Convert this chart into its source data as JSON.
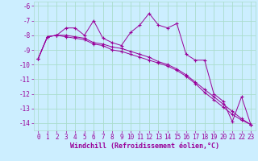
{
  "xlabel": "Windchill (Refroidissement éolien,°C)",
  "line1_x": [
    0,
    1,
    2,
    3,
    4,
    5,
    6,
    7,
    8,
    9,
    10,
    11,
    12,
    13,
    14,
    15,
    16,
    17,
    18,
    19,
    20,
    21,
    22,
    23
  ],
  "line1_y": [
    -9.6,
    -8.1,
    -8.0,
    -7.5,
    -7.5,
    -8.0,
    -7.0,
    -8.2,
    -8.5,
    -8.7,
    -7.8,
    -7.3,
    -6.5,
    -7.3,
    -7.5,
    -7.2,
    -9.3,
    -9.7,
    -9.7,
    -12.0,
    -12.5,
    -13.9,
    -12.2,
    -14.1
  ],
  "line2_x": [
    0,
    1,
    2,
    3,
    4,
    5,
    6,
    7,
    8,
    9,
    10,
    11,
    12,
    13,
    14,
    15,
    16,
    17,
    18,
    19,
    20,
    21,
    22,
    23
  ],
  "line2_y": [
    -9.6,
    -8.1,
    -8.0,
    -8.0,
    -8.1,
    -8.2,
    -8.5,
    -8.6,
    -8.8,
    -8.9,
    -9.1,
    -9.3,
    -9.5,
    -9.8,
    -10.0,
    -10.3,
    -10.7,
    -11.2,
    -11.7,
    -12.2,
    -12.7,
    -13.2,
    -13.7,
    -14.1
  ],
  "line3_x": [
    0,
    1,
    2,
    3,
    4,
    5,
    6,
    7,
    8,
    9,
    10,
    11,
    12,
    13,
    14,
    15,
    16,
    17,
    18,
    19,
    20,
    21,
    22,
    23
  ],
  "line3_y": [
    -9.6,
    -8.1,
    -8.0,
    -8.1,
    -8.2,
    -8.3,
    -8.6,
    -8.7,
    -9.0,
    -9.1,
    -9.3,
    -9.5,
    -9.7,
    -9.9,
    -10.1,
    -10.4,
    -10.8,
    -11.3,
    -11.9,
    -12.4,
    -12.9,
    -13.4,
    -13.8,
    -14.1
  ],
  "line_color": "#990099",
  "bg_color": "#cceeff",
  "grid_color": "#aaddcc",
  "ylim": [
    -14.5,
    -5.7
  ],
  "xlim": [
    -0.5,
    23.5
  ],
  "yticks": [
    -6,
    -7,
    -8,
    -9,
    -10,
    -11,
    -12,
    -13,
    -14
  ],
  "xticks": [
    0,
    1,
    2,
    3,
    4,
    5,
    6,
    7,
    8,
    9,
    10,
    11,
    12,
    13,
    14,
    15,
    16,
    17,
    18,
    19,
    20,
    21,
    22,
    23
  ],
  "tick_fontsize": 5.5,
  "xlabel_fontsize": 6.0
}
